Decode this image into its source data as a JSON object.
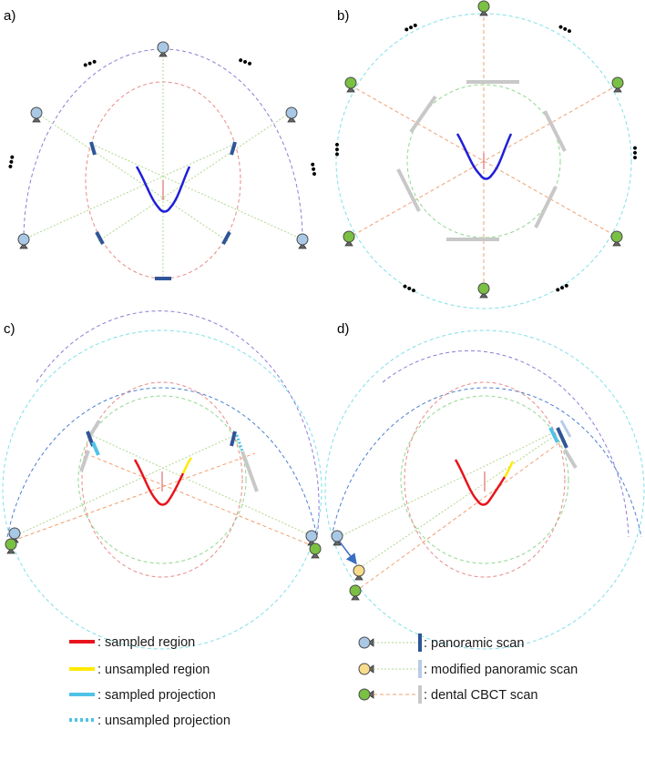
{
  "panels": [
    {
      "id": "a",
      "label": "a)"
    },
    {
      "id": "b",
      "label": "b)"
    },
    {
      "id": "c",
      "label": "c)"
    },
    {
      "id": "d",
      "label": "d)"
    }
  ],
  "ellipsis": "•••",
  "legend": {
    "left": [
      {
        "name": "sampled-region",
        "text": ": sampled region",
        "color": "#e8141c",
        "style": "solid"
      },
      {
        "name": "unsampled-region",
        "text": ": unsampled region",
        "color": "#ffea00",
        "style": "solid"
      },
      {
        "name": "sampled-projection",
        "text": ": sampled projection",
        "color": "#4fc3e8",
        "style": "solid"
      },
      {
        "name": "unsampled-projection",
        "text": ": unsampled projection",
        "color": "#4fc3e8",
        "style": "dotted"
      }
    ],
    "right": [
      {
        "name": "panoramic-scan",
        "text": ": panoramic scan",
        "source_color": "#a9c8e6",
        "detector_color": "#2f5597"
      },
      {
        "name": "modified-panoramic-scan",
        "text": ": modified panoramic scan",
        "source_color": "#f7dc8c",
        "detector_color": "#b8cce8"
      },
      {
        "name": "dental-cbct-scan",
        "text": ": dental CBCT scan",
        "source_color": "#7ac043",
        "detector_color": "#c8c8c8"
      }
    ]
  },
  "colors": {
    "arch": "#1f1fd9",
    "pano_source": "#a9c8e6",
    "pano_detector": "#2f5597",
    "cbct_source": "#7ac043",
    "cbct_detector": "#c8c8c8",
    "mod_source": "#f7dc8c",
    "source_outline": "#4a4a4a",
    "pano_orbit": "#8e7cd6",
    "pano_inner_orbit": "#e88a8a",
    "cbct_orbit": "#7fe0e8",
    "cbct_inner_orbit": "#8fd88f",
    "cbct_ray": "#f0a070",
    "pano_ray": "#b0d890",
    "blue_orbit": "#4a7fd0",
    "arrow": "#3a6fc0"
  }
}
